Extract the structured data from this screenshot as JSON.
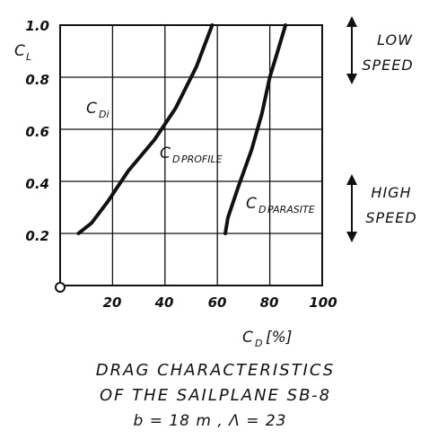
{
  "chart_data": {
    "type": "line",
    "title": "",
    "xlabel": "C_D [%]",
    "ylabel": "C_L",
    "xlim": [
      0,
      100
    ],
    "ylim": [
      0,
      1.0
    ],
    "x_ticks": [
      "20",
      "40",
      "60",
      "80",
      "100"
    ],
    "y_ticks": [
      "1.0",
      "0.8",
      "0.6",
      "0.4",
      "0.2"
    ],
    "series": [
      {
        "name": "C_Di",
        "points": [
          [
            58,
            1.0
          ],
          [
            52,
            0.84
          ],
          [
            44,
            0.68
          ],
          [
            36,
            0.56
          ],
          [
            26,
            0.44
          ],
          [
            18,
            0.32
          ],
          [
            12,
            0.24
          ],
          [
            7,
            0.2
          ]
        ]
      },
      {
        "name": "C_D PROFILE",
        "points": [
          [
            86,
            1.0
          ],
          [
            83,
            0.9
          ],
          [
            80,
            0.8
          ],
          [
            77,
            0.66
          ],
          [
            73,
            0.52
          ],
          [
            68,
            0.38
          ],
          [
            64,
            0.26
          ],
          [
            63,
            0.2
          ]
        ]
      },
      {
        "name": "C_D PARASITE",
        "points": []
      }
    ],
    "annotations": {
      "cdi_label": "C",
      "cdi_sub": "Di",
      "profile_label": "C",
      "profile_sub": "D",
      "profile_tail": "PROFILE",
      "parasite_label": "C",
      "parasite_sub": "D",
      "parasite_tail": "PARASITE",
      "y_axis_symbol": "C",
      "y_axis_sub": "L",
      "x_axis_symbol": "C",
      "x_axis_sub": "D",
      "x_axis_unit": "[%]",
      "low_speed_line1": "LOW",
      "low_speed_line2": "SPEED",
      "high_speed_line1": "HIGH",
      "high_speed_line2": "SPEED"
    },
    "caption": {
      "line1": "DRAG CHARACTERISTICS",
      "line2": "OF THE SAILPLANE SB-8",
      "line3": "b = 18 m ,   Λ = 23"
    },
    "grid": true,
    "legend": "none"
  }
}
